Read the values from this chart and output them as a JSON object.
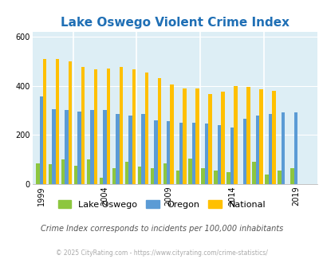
{
  "title": "Lake Oswego Violent Crime Index",
  "years": [
    1999,
    2000,
    2001,
    2002,
    2003,
    2004,
    2005,
    2006,
    2007,
    2008,
    2009,
    2010,
    2011,
    2012,
    2013,
    2014,
    2015,
    2016,
    2017,
    2018,
    2019,
    2020
  ],
  "lake_oswego": [
    85,
    80,
    100,
    75,
    100,
    25,
    65,
    90,
    70,
    65,
    85,
    55,
    105,
    65,
    55,
    50,
    0,
    90,
    40,
    55,
    65,
    0
  ],
  "oregon": [
    355,
    305,
    300,
    295,
    300,
    300,
    285,
    280,
    285,
    260,
    255,
    250,
    250,
    245,
    240,
    230,
    265,
    280,
    285,
    290,
    290,
    0
  ],
  "national": [
    510,
    510,
    500,
    475,
    465,
    470,
    475,
    465,
    455,
    430,
    405,
    390,
    390,
    365,
    375,
    400,
    395,
    385,
    380,
    0,
    0,
    0
  ],
  "ylim": [
    0,
    620
  ],
  "yticks": [
    0,
    200,
    400,
    600
  ],
  "bar_width": 0.28,
  "colors": {
    "lake_oswego": "#8dc63f",
    "oregon": "#5b9bd5",
    "national": "#ffc000"
  },
  "plot_bg": "#ddeef5",
  "title_color": "#1f6fb5",
  "title_fontsize": 11,
  "subtitle": "Crime Index corresponds to incidents per 100,000 inhabitants",
  "subtitle_color": "#555555",
  "footnote": "© 2025 CityRating.com - https://www.cityrating.com/crime-statistics/",
  "footnote_color": "#aaaaaa",
  "xtick_years": [
    1999,
    2004,
    2009,
    2014,
    2019
  ],
  "divider_years": [
    2002,
    2007,
    2012,
    2017
  ]
}
